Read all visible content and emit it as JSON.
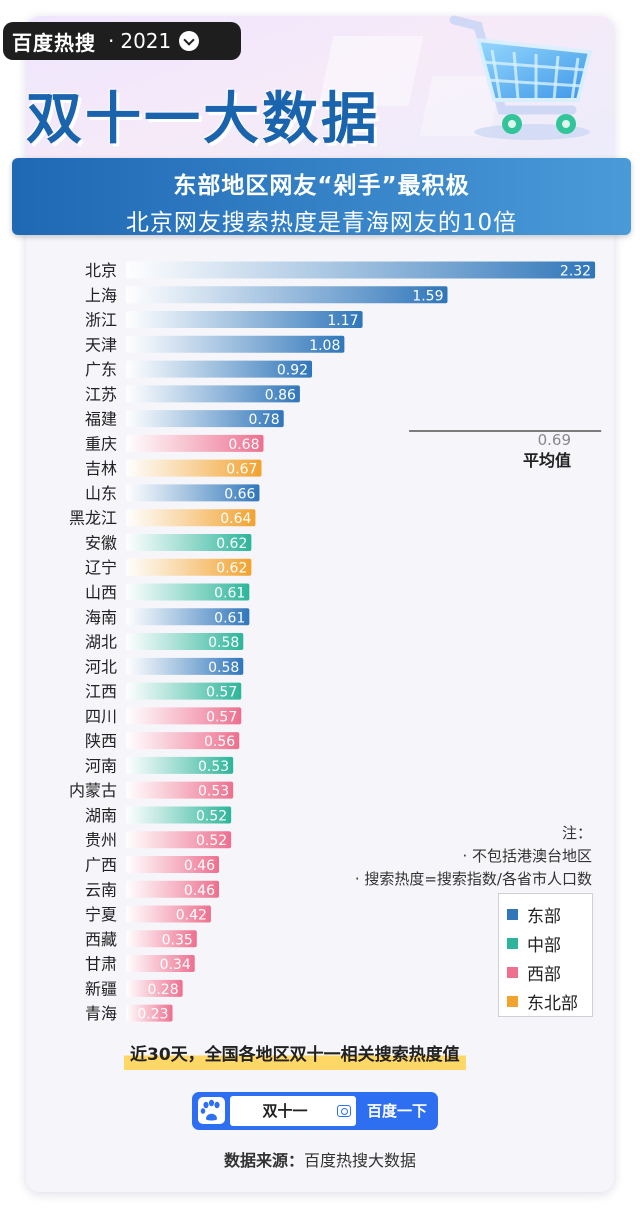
{
  "header": {
    "brand": "百度热搜",
    "separator": "·",
    "year": "2021",
    "title": "双十一大数据",
    "subtitle_line1": "东部地区网友“剁手”最积极",
    "subtitle_line2": "北京网友搜索热度是青海网友的10倍"
  },
  "colors": {
    "east": "#2f76ba",
    "central": "#2cb59a",
    "west": "#ee6f8e",
    "northeast": "#f2a22e",
    "title": "#1a63ad"
  },
  "chart_data": {
    "type": "bar",
    "orientation": "horizontal",
    "title": "近30天，全国各地区双十一相关搜索热度值",
    "categories": [
      "北京",
      "上海",
      "浙江",
      "天津",
      "广东",
      "江苏",
      "福建",
      "重庆",
      "吉林",
      "山东",
      "黑龙江",
      "安徽",
      "辽宁",
      "山西",
      "海南",
      "湖北",
      "河北",
      "江西",
      "四川",
      "陕西",
      "河南",
      "内蒙古",
      "湖南",
      "贵州",
      "广西",
      "云南",
      "宁夏",
      "西藏",
      "甘肃",
      "新疆",
      "青海"
    ],
    "values": [
      2.32,
      1.59,
      1.17,
      1.08,
      0.92,
      0.86,
      0.78,
      0.68,
      0.67,
      0.66,
      0.64,
      0.62,
      0.62,
      0.61,
      0.61,
      0.58,
      0.58,
      0.57,
      0.57,
      0.56,
      0.53,
      0.53,
      0.52,
      0.52,
      0.46,
      0.46,
      0.42,
      0.35,
      0.34,
      0.28,
      0.23
    ],
    "labels": [
      "2.32",
      "1.59",
      "1.17",
      "1.08",
      "0.92",
      "0.86",
      "0.78",
      "0.68",
      "0.67",
      "0.66",
      "0.64",
      "0.62",
      "0.62",
      "0.61",
      "0.61",
      "0.58",
      "0.58",
      "0.57",
      "0.57",
      "0.56",
      "0.53",
      "0.53",
      "0.52",
      "0.52",
      "0.46",
      "0.46",
      "0.42",
      "0.35",
      "0.34",
      "0.28",
      "0.23"
    ],
    "regions": [
      "east",
      "east",
      "east",
      "east",
      "east",
      "east",
      "east",
      "west",
      "northeast",
      "east",
      "northeast",
      "central",
      "northeast",
      "central",
      "east",
      "central",
      "east",
      "central",
      "west",
      "west",
      "central",
      "west",
      "central",
      "west",
      "west",
      "west",
      "west",
      "west",
      "west",
      "west",
      "west"
    ],
    "reference_line": {
      "value": 0.69,
      "value_label": "0.69",
      "label": "平均值"
    },
    "legend": [
      {
        "key": "east",
        "label": "东部"
      },
      {
        "key": "central",
        "label": "中部"
      },
      {
        "key": "west",
        "label": "西部"
      },
      {
        "key": "northeast",
        "label": "东北部"
      }
    ],
    "legend_position": "right",
    "grid": false
  },
  "notes": {
    "title": "注：",
    "line1": "· 不包括港澳台地区",
    "line2": "· 搜索热度=搜索指数/各省市人口数"
  },
  "search": {
    "query": "双十一",
    "button": "百度一下"
  },
  "source": {
    "label": "数据来源：",
    "value": "百度热搜大数据"
  }
}
